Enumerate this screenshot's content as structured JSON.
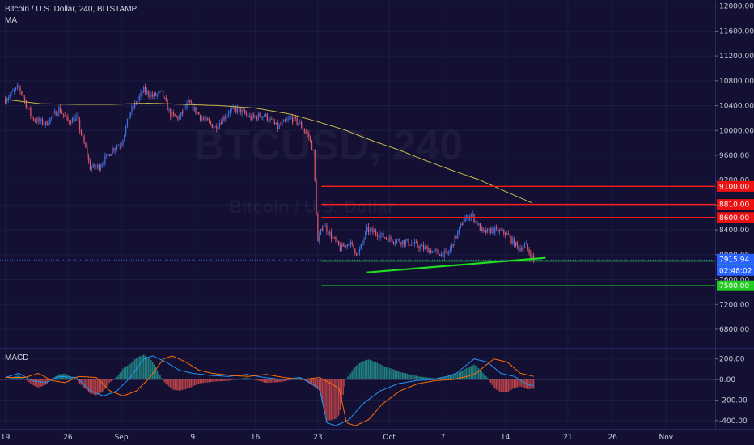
{
  "header": {
    "title": "Bitcoin / U.S. Dollar, 240, BITSTAMP",
    "indicator": "MA",
    "macd_label": "MACD"
  },
  "watermark": {
    "symbol": "BTCUSD, 240",
    "name": "Bitcoin / U.S. Dollar"
  },
  "colors": {
    "background": "#131034",
    "up": "#3f6fe0",
    "down": "#e0566a",
    "ma": "#c9b84a",
    "resistance": "#ff1a1a",
    "support": "#22dd22",
    "price_tag": "#2962ff",
    "grid": "#1d1a44"
  },
  "chart_data": [
    {
      "type": "candlestick",
      "title": "Bitcoin / U.S. Dollar, 240, BITSTAMP",
      "price_axis": {
        "range": [
          6500,
          12100
        ],
        "ticks": [
          12000,
          11600,
          11200,
          10800,
          10400,
          10000,
          9600,
          9200,
          8800,
          8400,
          8000,
          7600,
          7200,
          6800
        ],
        "tick_labels": [
          "12000.00",
          "11600.00",
          "11200.00",
          "10800.00",
          "10400.00",
          "10000.00",
          "9600.00",
          "9200.00",
          "8800.00",
          "8400.00",
          "8000.00",
          "7600.00",
          "7200.00",
          "6800.00"
        ]
      },
      "time_axis": {
        "labels": [
          "19",
          "26",
          "Sep",
          "9",
          "16",
          "23",
          "Oct",
          "7",
          "14",
          "21",
          "26",
          "Nov"
        ],
        "label_day_index": [
          0,
          7,
          13,
          21,
          28,
          35,
          43,
          49,
          56,
          63,
          68,
          74
        ],
        "range_days": [
          -0.6,
          79.5
        ]
      },
      "price_path": {
        "knot_days": [
          0,
          1.5,
          3,
          4.5,
          6,
          7,
          8,
          9,
          9.5,
          10.5,
          12,
          13,
          14,
          15.5,
          16.5,
          17.5,
          18.5,
          19.5,
          20.5,
          22,
          23.5,
          25,
          26,
          27.5,
          29,
          30.5,
          32,
          33,
          34,
          34.5,
          35,
          35.6,
          36.5,
          37.5,
          38.5,
          39.5,
          40.5,
          41.5,
          43,
          45,
          47,
          48.5,
          49.5,
          50.5,
          51.3,
          52.2,
          53.5,
          54.5,
          56,
          57.5,
          58.3,
          58.6,
          59.2
        ],
        "knot_prices": [
          10500,
          10700,
          10200,
          10100,
          10350,
          10150,
          10200,
          9700,
          9400,
          9420,
          9700,
          9800,
          10300,
          10650,
          10550,
          10600,
          10250,
          10200,
          10450,
          10200,
          10050,
          10300,
          10350,
          10200,
          10250,
          10050,
          10200,
          10100,
          9900,
          9650,
          8200,
          8500,
          8300,
          8100,
          8200,
          8000,
          8400,
          8350,
          8250,
          8200,
          8100,
          8020,
          8000,
          8300,
          8550,
          8650,
          8350,
          8400,
          8350,
          8100,
          8150,
          8050,
          7916
        ],
        "candles_per_day": 6,
        "seed": 7
      },
      "moving_average": {
        "period": 200,
        "knot_days": [
          0,
          4,
          8,
          12,
          16,
          20,
          24,
          28,
          32,
          35,
          38,
          41,
          44,
          47,
          50,
          53,
          56,
          59.2
        ],
        "knot_prices": [
          10500,
          10430,
          10420,
          10420,
          10440,
          10420,
          10400,
          10360,
          10260,
          10140,
          10010,
          9840,
          9690,
          9520,
          9360,
          9210,
          9020,
          8820
        ],
        "color": "#c9b84a"
      },
      "last_price": 7915.94,
      "countdown": "02:48:02",
      "levels": [
        {
          "label": "9100.00",
          "price": 9100,
          "color": "#ff1a1a",
          "from_day": 35.4
        },
        {
          "label": "8810.00",
          "price": 8810,
          "color": "#ff1a1a",
          "from_day": 35.4
        },
        {
          "label": "8600.00",
          "price": 8600,
          "color": "#ff1a1a",
          "from_day": 35.4
        },
        {
          "label": "7900.00",
          "price": 7900,
          "color": "#22dd22",
          "from_day": 35.4
        },
        {
          "label": "7500.00",
          "price": 7500,
          "color": "#22dd22",
          "from_day": 35.4
        }
      ],
      "trendline": {
        "color": "#22dd22",
        "points": [
          {
            "day": 40.5,
            "price": 7715
          },
          {
            "day": 60.5,
            "price": 7950
          }
        ]
      }
    },
    {
      "type": "area",
      "title": "MACD",
      "y_axis": {
        "range": [
          -480,
          300
        ],
        "ticks": [
          200,
          0,
          -200,
          -400
        ],
        "tick_labels": [
          "200.00",
          "0.00",
          "-200.00",
          "-400.00"
        ]
      },
      "macd_path": {
        "knot_days": [
          0,
          1.5,
          3,
          4.5,
          6,
          8,
          9.5,
          11,
          12.5,
          14,
          15.5,
          16.5,
          18,
          19.5,
          21,
          23,
          25,
          27,
          29,
          31,
          33,
          34.5,
          35.2,
          36,
          37,
          38.5,
          40,
          42,
          44,
          46,
          48,
          49.5,
          50.5,
          51.5,
          52.5,
          54,
          55.5,
          57,
          58.5,
          59.2
        ],
        "knot_values": [
          20,
          60,
          -10,
          -30,
          30,
          20,
          -110,
          -160,
          -110,
          20,
          200,
          230,
          170,
          90,
          60,
          40,
          30,
          50,
          20,
          0,
          20,
          -50,
          -90,
          -420,
          -450,
          -390,
          -240,
          -110,
          -40,
          -10,
          0,
          30,
          60,
          130,
          200,
          170,
          60,
          30,
          -50,
          -60
        ]
      },
      "signal_lag_days": 2.2,
      "colors": {
        "macd": "#2196f3",
        "signal": "#ff6d00",
        "hist_up": "#26a69a",
        "hist_down": "#ef5350"
      }
    }
  ]
}
